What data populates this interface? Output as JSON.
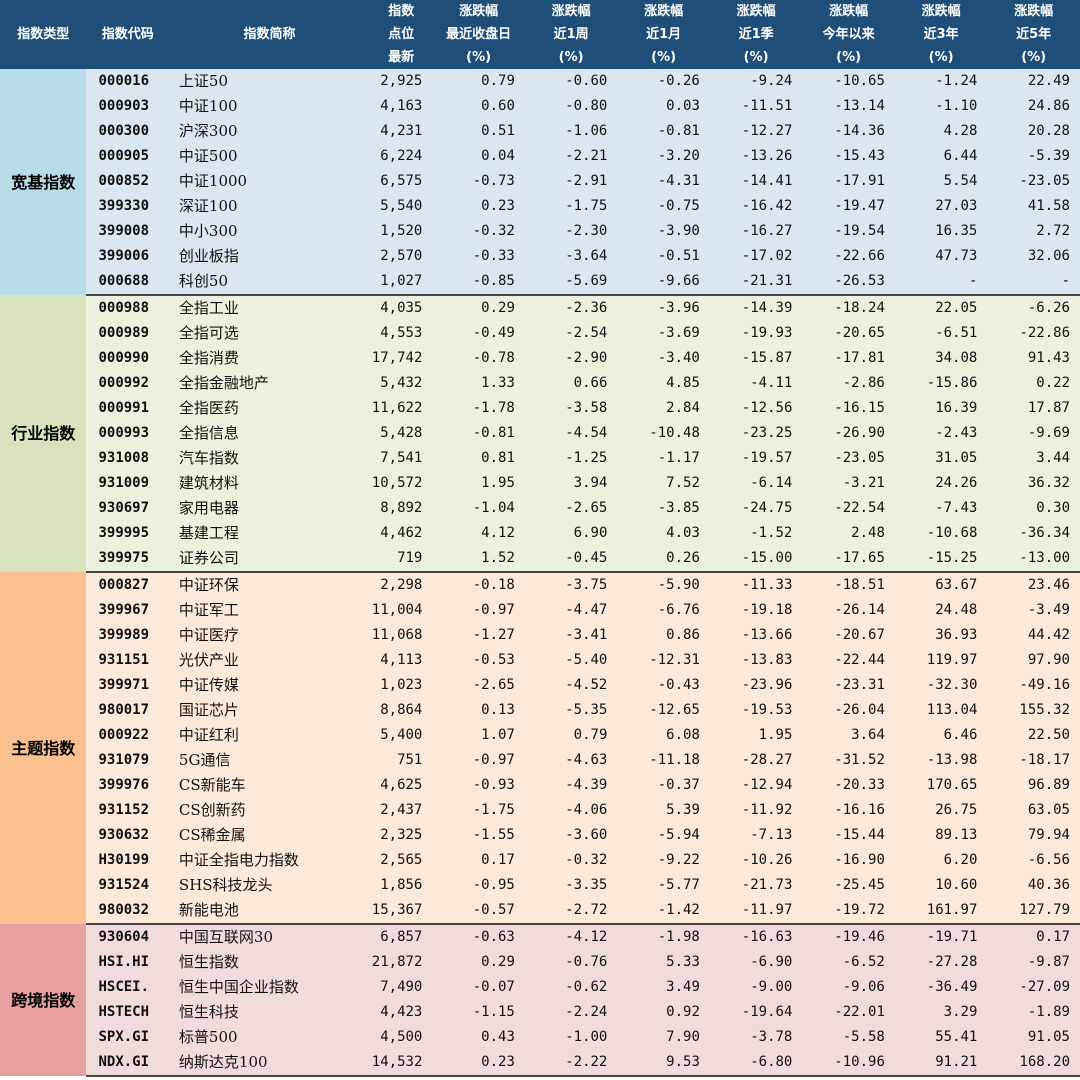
{
  "header": [
    [
      "指数类型"
    ],
    [
      "指数代码"
    ],
    [
      "指数简称"
    ],
    [
      "指数",
      "点位",
      "最新"
    ],
    [
      "涨跌幅",
      "最近收盘日",
      "(%)"
    ],
    [
      "涨跌幅",
      "近1周",
      "(%)"
    ],
    [
      "涨跌幅",
      "近1月",
      "(%)"
    ],
    [
      "涨跌幅",
      "近1季",
      "(%)"
    ],
    [
      "涨跌幅",
      "今年以来",
      "(%)"
    ],
    [
      "涨跌幅",
      "近3年",
      "(%)"
    ],
    [
      "涨跌幅",
      "近5年",
      "(%)"
    ]
  ],
  "colors": {
    "header_bg": "#1f4e79",
    "宽基指数": {
      "cat": "#b7dde8",
      "row": "#dce6f1"
    },
    "行业指数": {
      "cat": "#d6e3bc",
      "row": "#ebf1de"
    },
    "主题指数": {
      "cat": "#fac090",
      "row": "#fde9d9"
    },
    "跨境指数": {
      "cat": "#e6a0a0",
      "row": "#f2dcdb"
    }
  },
  "groups": [
    {
      "type": "宽基指数",
      "rows": [
        {
          "code": "000016",
          "name": "上证50",
          "point": "2,925",
          "d1": "0.79",
          "w1": "-0.60",
          "m1": "-0.26",
          "q1": "-9.24",
          "ytd": "-10.65",
          "y3": "-1.24",
          "y5": "22.49"
        },
        {
          "code": "000903",
          "name": "中证100",
          "point": "4,163",
          "d1": "0.60",
          "w1": "-0.80",
          "m1": "0.03",
          "q1": "-11.51",
          "ytd": "-13.14",
          "y3": "-1.10",
          "y5": "24.86"
        },
        {
          "code": "000300",
          "name": "沪深300",
          "point": "4,231",
          "d1": "0.51",
          "w1": "-1.06",
          "m1": "-0.81",
          "q1": "-12.27",
          "ytd": "-14.36",
          "y3": "4.28",
          "y5": "20.28"
        },
        {
          "code": "000905",
          "name": "中证500",
          "point": "6,224",
          "d1": "0.04",
          "w1": "-2.21",
          "m1": "-3.20",
          "q1": "-13.26",
          "ytd": "-15.43",
          "y3": "6.44",
          "y5": "-5.39"
        },
        {
          "code": "000852",
          "name": "中证1000",
          "point": "6,575",
          "d1": "-0.73",
          "w1": "-2.91",
          "m1": "-4.31",
          "q1": "-14.41",
          "ytd": "-17.91",
          "y3": "5.54",
          "y5": "-23.05"
        },
        {
          "code": "399330",
          "name": "深证100",
          "point": "5,540",
          "d1": "0.23",
          "w1": "-1.75",
          "m1": "-0.75",
          "q1": "-16.42",
          "ytd": "-19.47",
          "y3": "27.03",
          "y5": "41.58"
        },
        {
          "code": "399008",
          "name": "中小300",
          "point": "1,520",
          "d1": "-0.32",
          "w1": "-2.30",
          "m1": "-3.90",
          "q1": "-16.27",
          "ytd": "-19.54",
          "y3": "16.35",
          "y5": "2.72"
        },
        {
          "code": "399006",
          "name": "创业板指",
          "point": "2,570",
          "d1": "-0.33",
          "w1": "-3.64",
          "m1": "-0.51",
          "q1": "-17.02",
          "ytd": "-22.66",
          "y3": "47.73",
          "y5": "32.06"
        },
        {
          "code": "000688",
          "name": "科创50",
          "point": "1,027",
          "d1": "-0.85",
          "w1": "-5.69",
          "m1": "-9.66",
          "q1": "-21.31",
          "ytd": "-26.53",
          "y3": "-",
          "y5": "-"
        }
      ]
    },
    {
      "type": "行业指数",
      "rows": [
        {
          "code": "000988",
          "name": "全指工业",
          "point": "4,035",
          "d1": "0.29",
          "w1": "-2.36",
          "m1": "-3.96",
          "q1": "-14.39",
          "ytd": "-18.24",
          "y3": "22.05",
          "y5": "-6.26"
        },
        {
          "code": "000989",
          "name": "全指可选",
          "point": "4,553",
          "d1": "-0.49",
          "w1": "-2.54",
          "m1": "-3.69",
          "q1": "-19.93",
          "ytd": "-20.65",
          "y3": "-6.51",
          "y5": "-22.86"
        },
        {
          "code": "000990",
          "name": "全指消费",
          "point": "17,742",
          "d1": "-0.78",
          "w1": "-2.90",
          "m1": "-3.40",
          "q1": "-15.87",
          "ytd": "-17.81",
          "y3": "34.08",
          "y5": "91.43"
        },
        {
          "code": "000992",
          "name": "全指金融地产",
          "point": "5,432",
          "d1": "1.33",
          "w1": "0.66",
          "m1": "4.85",
          "q1": "-4.11",
          "ytd": "-2.86",
          "y3": "-15.86",
          "y5": "0.22"
        },
        {
          "code": "000991",
          "name": "全指医药",
          "point": "11,622",
          "d1": "-1.78",
          "w1": "-3.58",
          "m1": "2.84",
          "q1": "-12.56",
          "ytd": "-16.15",
          "y3": "16.39",
          "y5": "17.87"
        },
        {
          "code": "000993",
          "name": "全指信息",
          "point": "5,428",
          "d1": "-0.81",
          "w1": "-4.54",
          "m1": "-10.48",
          "q1": "-23.25",
          "ytd": "-26.90",
          "y3": "-2.43",
          "y5": "-9.69"
        },
        {
          "code": "931008",
          "name": "汽车指数",
          "point": "7,541",
          "d1": "0.81",
          "w1": "-1.25",
          "m1": "-1.17",
          "q1": "-19.57",
          "ytd": "-23.05",
          "y3": "31.05",
          "y5": "3.44"
        },
        {
          "code": "931009",
          "name": "建筑材料",
          "point": "10,572",
          "d1": "1.95",
          "w1": "3.94",
          "m1": "7.52",
          "q1": "-6.14",
          "ytd": "-3.21",
          "y3": "24.26",
          "y5": "36.32"
        },
        {
          "code": "930697",
          "name": "家用电器",
          "point": "8,892",
          "d1": "-1.04",
          "w1": "-2.65",
          "m1": "-3.85",
          "q1": "-24.75",
          "ytd": "-22.54",
          "y3": "-7.43",
          "y5": "0.30"
        },
        {
          "code": "399995",
          "name": "基建工程",
          "point": "4,462",
          "d1": "4.12",
          "w1": "6.90",
          "m1": "4.03",
          "q1": "-1.52",
          "ytd": "2.48",
          "y3": "-10.68",
          "y5": "-36.34"
        },
        {
          "code": "399975",
          "name": "证券公司",
          "point": "719",
          "d1": "1.52",
          "w1": "-0.45",
          "m1": "0.26",
          "q1": "-15.00",
          "ytd": "-17.65",
          "y3": "-15.25",
          "y5": "-13.00"
        }
      ]
    },
    {
      "type": "主题指数",
      "rows": [
        {
          "code": "000827",
          "name": "中证环保",
          "point": "2,298",
          "d1": "-0.18",
          "w1": "-3.75",
          "m1": "-5.90",
          "q1": "-11.33",
          "ytd": "-18.51",
          "y3": "63.67",
          "y5": "23.46"
        },
        {
          "code": "399967",
          "name": "中证军工",
          "point": "11,004",
          "d1": "-0.97",
          "w1": "-4.47",
          "m1": "-6.76",
          "q1": "-19.18",
          "ytd": "-26.14",
          "y3": "24.48",
          "y5": "-3.49"
        },
        {
          "code": "399989",
          "name": "中证医疗",
          "point": "11,068",
          "d1": "-1.27",
          "w1": "-3.41",
          "m1": "0.86",
          "q1": "-13.66",
          "ytd": "-20.67",
          "y3": "36.93",
          "y5": "44.42"
        },
        {
          "code": "931151",
          "name": "光伏产业",
          "point": "4,113",
          "d1": "-0.53",
          "w1": "-5.40",
          "m1": "-12.31",
          "q1": "-13.83",
          "ytd": "-22.44",
          "y3": "119.97",
          "y5": "97.90"
        },
        {
          "code": "399971",
          "name": "中证传媒",
          "point": "1,023",
          "d1": "-2.65",
          "w1": "-4.52",
          "m1": "-0.43",
          "q1": "-23.96",
          "ytd": "-23.31",
          "y3": "-32.30",
          "y5": "-49.16"
        },
        {
          "code": "980017",
          "name": "国证芯片",
          "point": "8,864",
          "d1": "0.13",
          "w1": "-5.35",
          "m1": "-12.65",
          "q1": "-19.53",
          "ytd": "-26.04",
          "y3": "113.04",
          "y5": "155.32"
        },
        {
          "code": "000922",
          "name": "中证红利",
          "point": "5,400",
          "d1": "1.07",
          "w1": "0.79",
          "m1": "6.08",
          "q1": "1.95",
          "ytd": "3.64",
          "y3": "6.46",
          "y5": "22.50"
        },
        {
          "code": "931079",
          "name": "5G通信",
          "point": "751",
          "d1": "-0.97",
          "w1": "-4.63",
          "m1": "-11.18",
          "q1": "-28.27",
          "ytd": "-31.52",
          "y3": "-13.98",
          "y5": "-18.17"
        },
        {
          "code": "399976",
          "name": "CS新能车",
          "point": "4,625",
          "d1": "-0.93",
          "w1": "-4.39",
          "m1": "-0.37",
          "q1": "-12.94",
          "ytd": "-20.33",
          "y3": "170.65",
          "y5": "96.89"
        },
        {
          "code": "931152",
          "name": "CS创新药",
          "point": "2,437",
          "d1": "-1.75",
          "w1": "-4.06",
          "m1": "5.39",
          "q1": "-11.92",
          "ytd": "-16.16",
          "y3": "26.75",
          "y5": "63.05"
        },
        {
          "code": "930632",
          "name": "CS稀金属",
          "point": "2,325",
          "d1": "-1.55",
          "w1": "-3.60",
          "m1": "-5.94",
          "q1": "-7.13",
          "ytd": "-15.44",
          "y3": "89.13",
          "y5": "79.94"
        },
        {
          "code": "H30199",
          "name": "中证全指电力指数",
          "point": "2,565",
          "d1": "0.17",
          "w1": "-0.32",
          "m1": "-9.22",
          "q1": "-10.26",
          "ytd": "-16.90",
          "y3": "6.20",
          "y5": "-6.56"
        },
        {
          "code": "931524",
          "name": "SHS科技龙头",
          "point": "1,856",
          "d1": "-0.95",
          "w1": "-3.35",
          "m1": "-5.77",
          "q1": "-21.73",
          "ytd": "-25.45",
          "y3": "10.60",
          "y5": "40.36"
        },
        {
          "code": "980032",
          "name": "新能电池",
          "point": "15,367",
          "d1": "-0.57",
          "w1": "-2.72",
          "m1": "-1.42",
          "q1": "-11.97",
          "ytd": "-19.72",
          "y3": "161.97",
          "y5": "127.79"
        }
      ]
    },
    {
      "type": "跨境指数",
      "rows": [
        {
          "code": "930604",
          "name": "中国互联网30",
          "point": "6,857",
          "d1": "-0.63",
          "w1": "-4.12",
          "m1": "-1.98",
          "q1": "-16.63",
          "ytd": "-19.46",
          "y3": "-19.71",
          "y5": "0.17"
        },
        {
          "code": "HSI.HI",
          "name": "恒生指数",
          "point": "21,872",
          "d1": "0.29",
          "w1": "-0.76",
          "m1": "5.33",
          "q1": "-6.90",
          "ytd": "-6.52",
          "y3": "-27.28",
          "y5": "-9.87"
        },
        {
          "code": "HSCEI.",
          "name": "恒生中国企业指数",
          "point": "7,490",
          "d1": "-0.07",
          "w1": "-0.62",
          "m1": "3.49",
          "q1": "-9.00",
          "ytd": "-9.06",
          "y3": "-36.49",
          "y5": "-27.09"
        },
        {
          "code": "HSTECH",
          "name": "恒生科技",
          "point": "4,423",
          "d1": "-1.15",
          "w1": "-2.24",
          "m1": "0.92",
          "q1": "-19.64",
          "ytd": "-22.01",
          "y3": "3.29",
          "y5": "-1.89"
        },
        {
          "code": "SPX.GI",
          "name": "标普500",
          "point": "4,500",
          "d1": "0.43",
          "w1": "-1.00",
          "m1": "7.90",
          "q1": "-3.78",
          "ytd": "-5.58",
          "y3": "55.41",
          "y5": "91.05"
        },
        {
          "code": "NDX.GI",
          "name": "纳斯达克100",
          "point": "14,532",
          "d1": "0.23",
          "w1": "-2.22",
          "m1": "9.53",
          "q1": "-6.80",
          "ytd": "-10.96",
          "y3": "91.21",
          "y5": "168.20"
        }
      ]
    }
  ]
}
